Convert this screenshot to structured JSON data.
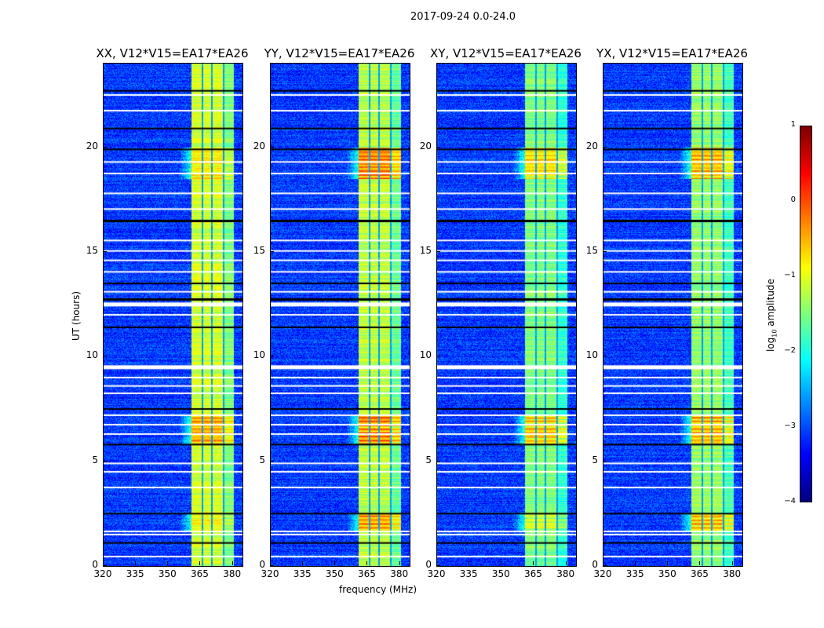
{
  "suptitle": "2017-09-24 0.0-24.0",
  "chart_data": {
    "type": "heatmap",
    "title": "2017-09-24 0.0-24.0",
    "xlabel": "frequency (MHz)",
    "ylabel": "UT (hours)",
    "xlim": [
      320,
      384.5
    ],
    "ylim": [
      0,
      24
    ],
    "xticks": [
      320,
      335,
      350,
      365,
      380
    ],
    "yticks": [
      0,
      5,
      10,
      15,
      20
    ],
    "colorbar": {
      "label": "log10 amplitude",
      "label_main": "log",
      "label_sub": "10",
      "label_tail": " amplitude",
      "range": [
        -4,
        1
      ],
      "ticks": [
        -4,
        -3,
        -2,
        -1,
        0,
        1
      ],
      "tick_labels": [
        "−4",
        "−3",
        "−2",
        "−1",
        "0",
        "1"
      ],
      "colormap": "jet"
    },
    "panels": [
      {
        "title": "XX, V12*V15=EA17*EA26",
        "band_level": -1.1,
        "hot": [
          [
            5.8,
            7.2,
            0.6
          ],
          [
            1.7,
            2.5,
            0.2
          ],
          [
            18.5,
            20,
            0.3
          ]
        ]
      },
      {
        "title": "YY, V12*V15=EA17*EA26",
        "band_level": -1.2,
        "hot": [
          [
            5.8,
            7.2,
            0.9
          ],
          [
            1.7,
            2.5,
            0.8
          ],
          [
            18.5,
            20,
            0.9
          ]
        ]
      },
      {
        "title": "XY, V12*V15=EA17*EA26",
        "band_level": -1.5,
        "hot": [
          [
            5.8,
            7.2,
            0.9
          ],
          [
            1.7,
            2.5,
            0.4
          ],
          [
            18.5,
            20,
            0.7
          ]
        ]
      },
      {
        "title": "YX, V12*V15=EA17*EA26",
        "band_level": -1.4,
        "hot": [
          [
            5.8,
            7.2,
            0.9
          ],
          [
            1.7,
            2.5,
            0.8
          ],
          [
            18.5,
            20,
            0.8
          ]
        ]
      }
    ],
    "background_level": -3.1,
    "band_channels_mhz": [
      [
        360.7,
        365.4
      ],
      [
        366.1,
        369.7
      ],
      [
        370.4,
        375.1
      ],
      [
        375.8,
        380.2
      ]
    ],
    "flagged_hours_white": [
      0.45,
      1.5,
      1.65,
      3.75,
      4.5,
      4.9,
      6.3,
      6.75,
      7.2,
      8.25,
      8.6,
      9.0,
      9.55,
      12.0,
      12.55,
      13.1,
      14.05,
      14.6,
      15.05,
      15.55,
      17.05,
      17.8,
      18.75,
      19.3,
      21.75,
      22.5
    ],
    "flagged_hours_black": [
      1.1,
      2.5,
      5.8,
      7.5,
      11.4,
      12.75,
      13.5,
      16.5,
      19.9,
      20.9,
      22.7
    ]
  }
}
